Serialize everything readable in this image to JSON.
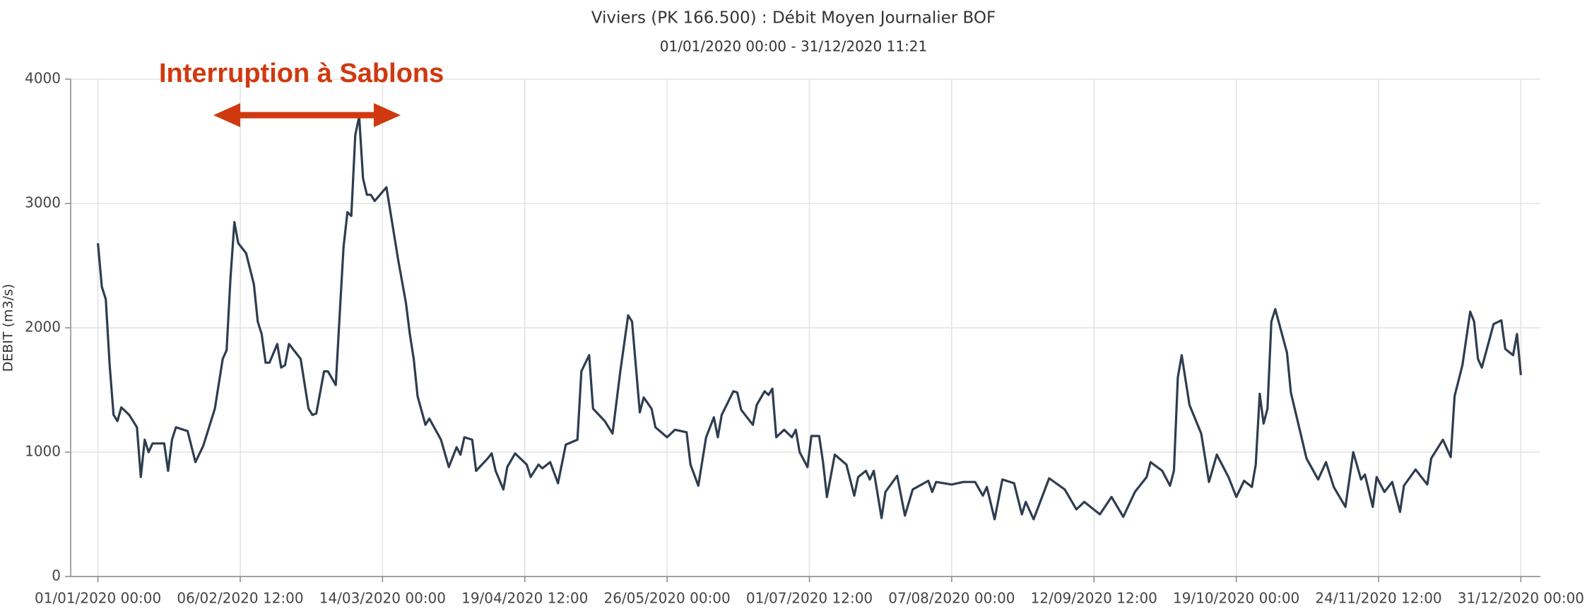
{
  "chart_data": {
    "type": "line",
    "title": "Viviers (PK 166.500) : Débit Moyen Journalier BOF",
    "subtitle": "01/01/2020 00:00 - 31/12/2020 11:21",
    "y_label": "DEBIT (m3/s)",
    "annotation": "Interruption à Sablons",
    "annotation_color": "#d0390f",
    "xlim": [
      "2019-12-25",
      "2021-01-05"
    ],
    "xticks": [
      {
        "value": "2020-01-01T00:00",
        "label": "01/01/2020 00:00"
      },
      {
        "value": "2020-02-06T12:00",
        "label": "06/02/2020 12:00"
      },
      {
        "value": "2020-03-14T00:00",
        "label": "14/03/2020 00:00"
      },
      {
        "value": "2020-04-19T12:00",
        "label": "19/04/2020 12:00"
      },
      {
        "value": "2020-05-26T00:00",
        "label": "26/05/2020 00:00"
      },
      {
        "value": "2020-07-01T12:00",
        "label": "01/07/2020 12:00"
      },
      {
        "value": "2020-08-07T00:00",
        "label": "07/08/2020 00:00"
      },
      {
        "value": "2020-09-12T12:00",
        "label": "12/09/2020 12:00"
      },
      {
        "value": "2020-10-19T00:00",
        "label": "19/10/2020 00:00"
      },
      {
        "value": "2020-11-24T12:00",
        "label": "24/11/2020 12:00"
      },
      {
        "value": "2020-12-31T00:00",
        "label": "31/12/2020 00:00"
      }
    ],
    "ylim": [
      0,
      4000
    ],
    "yticks": [
      0,
      1000,
      2000,
      3000,
      4000
    ],
    "grid": true,
    "x": [
      "2020-01-01",
      "2020-01-02",
      "2020-01-03",
      "2020-01-04",
      "2020-01-05",
      "2020-01-06",
      "2020-01-07",
      "2020-01-09",
      "2020-01-11",
      "2020-01-12",
      "2020-01-13",
      "2020-01-14",
      "2020-01-15",
      "2020-01-18",
      "2020-01-19",
      "2020-01-20",
      "2020-01-21",
      "2020-01-24",
      "2020-01-26",
      "2020-01-28",
      "2020-01-31",
      "2020-02-02",
      "2020-02-03",
      "2020-02-04",
      "2020-02-05",
      "2020-02-06",
      "2020-02-08",
      "2020-02-10",
      "2020-02-11",
      "2020-02-12",
      "2020-02-13",
      "2020-02-14",
      "2020-02-16",
      "2020-02-17",
      "2020-02-18",
      "2020-02-19",
      "2020-02-22",
      "2020-02-24",
      "2020-02-25",
      "2020-02-26",
      "2020-02-28",
      "2020-02-29",
      "2020-03-02",
      "2020-03-03",
      "2020-03-04",
      "2020-03-05",
      "2020-03-06",
      "2020-03-07",
      "2020-03-08",
      "2020-03-09",
      "2020-03-10",
      "2020-03-11",
      "2020-03-12",
      "2020-03-15",
      "2020-03-18",
      "2020-03-20",
      "2020-03-21",
      "2020-03-22",
      "2020-03-23",
      "2020-03-25",
      "2020-03-26",
      "2020-03-29",
      "2020-03-31",
      "2020-04-02",
      "2020-04-03",
      "2020-04-04",
      "2020-04-06",
      "2020-04-07",
      "2020-04-10",
      "2020-04-11",
      "2020-04-12",
      "2020-04-14",
      "2020-04-15",
      "2020-04-17",
      "2020-04-20",
      "2020-04-21",
      "2020-04-23",
      "2020-04-24",
      "2020-04-26",
      "2020-04-28",
      "2020-04-30",
      "2020-05-03",
      "2020-05-04",
      "2020-05-06",
      "2020-05-07",
      "2020-05-10",
      "2020-05-12",
      "2020-05-14",
      "2020-05-16",
      "2020-05-17",
      "2020-05-19",
      "2020-05-20",
      "2020-05-22",
      "2020-05-23",
      "2020-05-26",
      "2020-05-28",
      "2020-05-31",
      "2020-06-01",
      "2020-06-03",
      "2020-06-05",
      "2020-06-07",
      "2020-06-08",
      "2020-06-09",
      "2020-06-12",
      "2020-06-13",
      "2020-06-14",
      "2020-06-17",
      "2020-06-18",
      "2020-06-20",
      "2020-06-21",
      "2020-06-22",
      "2020-06-23",
      "2020-06-25",
      "2020-06-27",
      "2020-06-28",
      "2020-06-29",
      "2020-07-01",
      "2020-07-02",
      "2020-07-04",
      "2020-07-05",
      "2020-07-06",
      "2020-07-08",
      "2020-07-11",
      "2020-07-13",
      "2020-07-14",
      "2020-07-16",
      "2020-07-17",
      "2020-07-18",
      "2020-07-20",
      "2020-07-21",
      "2020-07-24",
      "2020-07-26",
      "2020-07-28",
      "2020-08-01",
      "2020-08-02",
      "2020-08-03",
      "2020-08-07",
      "2020-08-10",
      "2020-08-13",
      "2020-08-15",
      "2020-08-16",
      "2020-08-18",
      "2020-08-20",
      "2020-08-23",
      "2020-08-25",
      "2020-08-26",
      "2020-08-28",
      "2020-09-01",
      "2020-09-05",
      "2020-09-08",
      "2020-09-10",
      "2020-09-14",
      "2020-09-17",
      "2020-09-20",
      "2020-09-23",
      "2020-09-26",
      "2020-09-27",
      "2020-09-30",
      "2020-10-02",
      "2020-10-03",
      "2020-10-04",
      "2020-10-05",
      "2020-10-07",
      "2020-10-10",
      "2020-10-12",
      "2020-10-14",
      "2020-10-17",
      "2020-10-19",
      "2020-10-21",
      "2020-10-23",
      "2020-10-24",
      "2020-10-25",
      "2020-10-26",
      "2020-10-27",
      "2020-10-28",
      "2020-10-29",
      "2020-11-01",
      "2020-11-02",
      "2020-11-06",
      "2020-11-09",
      "2020-11-11",
      "2020-11-13",
      "2020-11-16",
      "2020-11-18",
      "2020-11-20",
      "2020-11-21",
      "2020-11-23",
      "2020-11-24",
      "2020-11-26",
      "2020-11-28",
      "2020-11-30",
      "2020-12-01",
      "2020-12-04",
      "2020-12-07",
      "2020-12-08",
      "2020-12-11",
      "2020-12-13",
      "2020-12-14",
      "2020-12-16",
      "2020-12-18",
      "2020-12-19",
      "2020-12-20",
      "2020-12-21",
      "2020-12-24",
      "2020-12-26",
      "2020-12-27",
      "2020-12-29",
      "2020-12-30",
      "2020-12-31"
    ],
    "series": [
      {
        "name": "DEBIT",
        "color": "#2e3d4f",
        "values": [
          2680,
          2330,
          2230,
          1700,
          1300,
          1250,
          1360,
          1300,
          1200,
          800,
          1100,
          1000,
          1070,
          1070,
          850,
          1100,
          1200,
          1170,
          920,
          1050,
          1350,
          1750,
          1820,
          2400,
          2850,
          2680,
          2600,
          2350,
          2050,
          1950,
          1720,
          1720,
          1870,
          1680,
          1700,
          1870,
          1750,
          1350,
          1300,
          1310,
          1650,
          1650,
          1540,
          2100,
          2650,
          2930,
          2900,
          3550,
          3700,
          3200,
          3070,
          3070,
          3020,
          3130,
          2550,
          2200,
          1950,
          1750,
          1450,
          1220,
          1270,
          1100,
          880,
          1040,
          980,
          1120,
          1100,
          850,
          950,
          990,
          850,
          700,
          880,
          990,
          900,
          800,
          900,
          870,
          920,
          750,
          1060,
          1100,
          1650,
          1780,
          1350,
          1250,
          1150,
          1650,
          2100,
          2050,
          1320,
          1440,
          1350,
          1200,
          1120,
          1180,
          1160,
          900,
          730,
          1120,
          1280,
          1120,
          1300,
          1490,
          1480,
          1340,
          1220,
          1380,
          1490,
          1460,
          1510,
          1120,
          1180,
          1120,
          1180,
          1000,
          880,
          1130,
          1130,
          920,
          640,
          980,
          900,
          650,
          800,
          850,
          780,
          850,
          470,
          680,
          810,
          490,
          700,
          770,
          680,
          760,
          740,
          760,
          760,
          650,
          720,
          460,
          780,
          750,
          500,
          600,
          460,
          790,
          700,
          540,
          600,
          500,
          640,
          480,
          680,
          800,
          920,
          850,
          730,
          850,
          1600,
          1780,
          1380,
          1150,
          760,
          980,
          800,
          640,
          770,
          720,
          900,
          1470,
          1230,
          1350,
          2050,
          2150,
          1800,
          1480,
          950,
          780,
          920,
          720,
          560,
          1000,
          780,
          820,
          560,
          800,
          680,
          760,
          520,
          730,
          860,
          740,
          950,
          1100,
          960,
          1450,
          1700,
          2130,
          2050,
          1750,
          1680,
          2030,
          2060,
          1830,
          1780,
          1950,
          1620
        ]
      }
    ]
  }
}
